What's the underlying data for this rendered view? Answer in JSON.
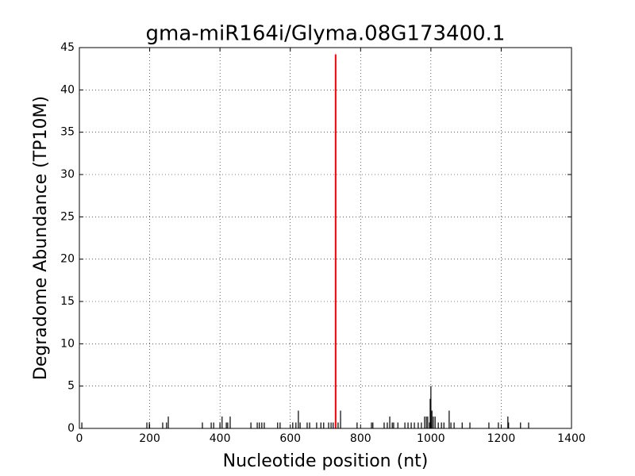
{
  "chart_data": {
    "type": "stem",
    "title": "gma-miR164i/Glyma.08G173400.1",
    "xlabel": "Nucleotide position (nt)",
    "ylabel": "Degradome Abundance (TP10M)",
    "xlim": [
      0,
      1400
    ],
    "ylim": [
      0,
      45
    ],
    "xticks": [
      0,
      200,
      400,
      600,
      800,
      1000,
      1200,
      1400
    ],
    "yticks": [
      0,
      5,
      10,
      15,
      20,
      25,
      30,
      35,
      40,
      45
    ],
    "grid": true,
    "series": [
      {
        "color": "#000000",
        "x": [
          7,
          192,
          199,
          237,
          248,
          253,
          350,
          375,
          382,
          400,
          406,
          418,
          422,
          429,
          488,
          506,
          512,
          519,
          526,
          564,
          571,
          607,
          616,
          623,
          628,
          648,
          655,
          675,
          687,
          695,
          709,
          716,
          722,
          736,
          743,
          790,
          831,
          835,
          867,
          876,
          883,
          890,
          894,
          906,
          926,
          935,
          944,
          953,
          964,
          973,
          982,
          987,
          991,
          996,
          998,
          1000,
          1003,
          1007,
          1012,
          1021,
          1030,
          1037,
          1052,
          1057,
          1066,
          1089,
          1111,
          1165,
          1192,
          1219,
          1221,
          1255,
          1278
        ],
        "values": [
          0.7,
          0.7,
          0.7,
          0.7,
          0.7,
          1.4,
          0.7,
          0.7,
          0.7,
          0.7,
          1.4,
          0.7,
          0.7,
          1.4,
          0.7,
          0.7,
          0.7,
          0.7,
          0.7,
          0.7,
          0.7,
          0.7,
          0.7,
          2.1,
          0.7,
          0.7,
          0.7,
          0.7,
          0.7,
          0.7,
          0.7,
          0.7,
          0.7,
          0.7,
          2.1,
          0.7,
          0.7,
          0.7,
          0.7,
          0.7,
          1.4,
          0.7,
          0.7,
          0.7,
          0.7,
          0.7,
          0.7,
          0.7,
          0.7,
          0.7,
          1.4,
          1.4,
          1.4,
          0.7,
          3.5,
          5.0,
          2.1,
          1.4,
          1.4,
          0.7,
          0.7,
          0.7,
          2.1,
          0.7,
          0.7,
          0.7,
          0.7,
          0.7,
          0.7,
          1.4,
          0.7,
          0.7,
          0.7
        ]
      },
      {
        "color": "#ff0000",
        "x": [
          729
        ],
        "values": [
          44.2
        ]
      }
    ]
  }
}
